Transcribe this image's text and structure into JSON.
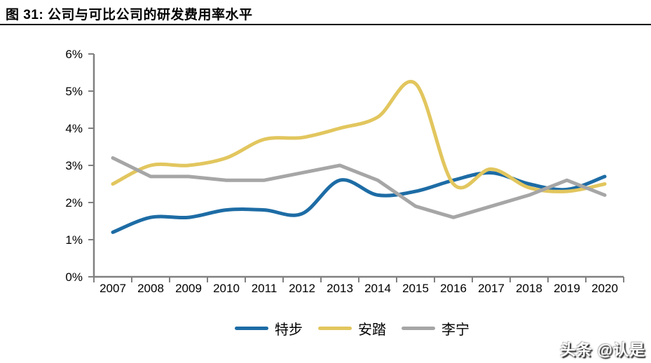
{
  "header": {
    "title": "图 31: 公司与可比公司的研发费用率水平"
  },
  "watermark": {
    "text": "头条 @认是"
  },
  "chart_data": {
    "type": "line",
    "title": "图 31: 公司与可比公司的研发费用率水平",
    "x": [
      "2007",
      "2008",
      "2009",
      "2010",
      "2011",
      "2012",
      "2013",
      "2014",
      "2015",
      "2016",
      "2017",
      "2018",
      "2019",
      "2020"
    ],
    "yticks": [
      "0%",
      "1%",
      "2%",
      "3%",
      "4%",
      "5%",
      "6%"
    ],
    "ylim": [
      0,
      6
    ],
    "ylabel": "",
    "xlabel": "",
    "grid": false,
    "legend_position": "bottom",
    "axis_color": "#808080",
    "text_color": "#000000",
    "series": [
      {
        "name": "特步",
        "color": "#1d6ca5",
        "smooth": true,
        "values": [
          1.2,
          1.6,
          1.6,
          1.8,
          1.8,
          1.7,
          2.6,
          2.2,
          2.3,
          2.6,
          2.8,
          2.5,
          2.35,
          2.7
        ]
      },
      {
        "name": "安踏",
        "color": "#e2c65e",
        "smooth": true,
        "values": [
          2.5,
          3.0,
          3.0,
          3.2,
          3.7,
          3.75,
          4.0,
          4.3,
          5.2,
          2.5,
          2.9,
          2.4,
          2.3,
          2.5
        ]
      },
      {
        "name": "李宁",
        "color": "#a6a6a6",
        "smooth": false,
        "values": [
          3.2,
          2.7,
          2.7,
          2.6,
          2.6,
          2.8,
          3.0,
          2.6,
          1.9,
          1.6,
          1.9,
          2.2,
          2.6,
          2.2
        ]
      }
    ]
  }
}
